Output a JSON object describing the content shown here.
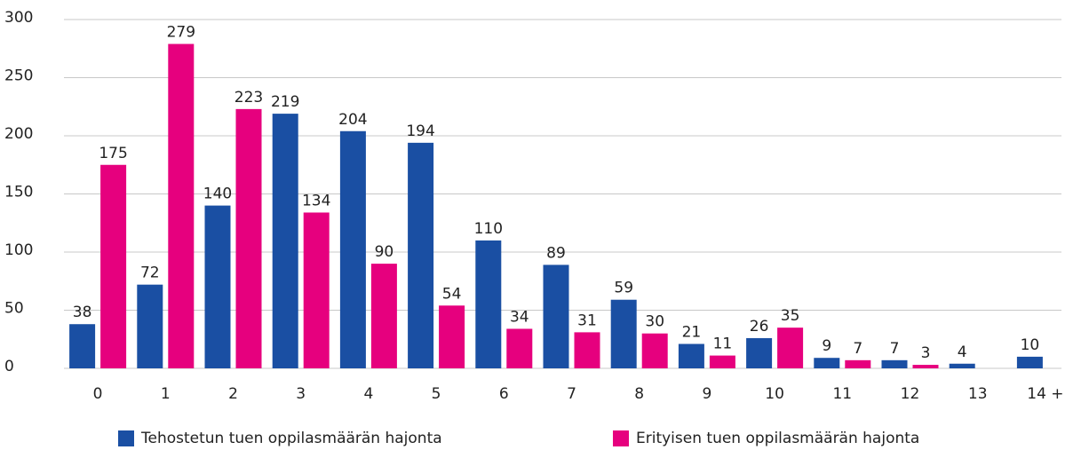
{
  "chart_data": {
    "type": "bar",
    "categories": [
      "0",
      "1",
      "2",
      "3",
      "4",
      "5",
      "6",
      "7",
      "8",
      "9",
      "10",
      "11",
      "12",
      "13",
      "14 +"
    ],
    "series": [
      {
        "name": "Tehostetun tuen oppilasmäärän hajonta",
        "color": "#1a4fa3",
        "values": [
          38,
          72,
          140,
          219,
          204,
          194,
          110,
          89,
          59,
          21,
          26,
          9,
          7,
          4,
          10
        ]
      },
      {
        "name": "Erityisen tuen oppilasmäärän hajonta",
        "color": "#e6007e",
        "values": [
          175,
          279,
          223,
          134,
          90,
          54,
          34,
          31,
          30,
          11,
          35,
          7,
          3,
          null,
          null
        ]
      }
    ],
    "ylim": [
      0,
      300
    ],
    "yticks": [
      0,
      50,
      100,
      150,
      200,
      250,
      300
    ],
    "grid": true,
    "legend": "bottom"
  }
}
